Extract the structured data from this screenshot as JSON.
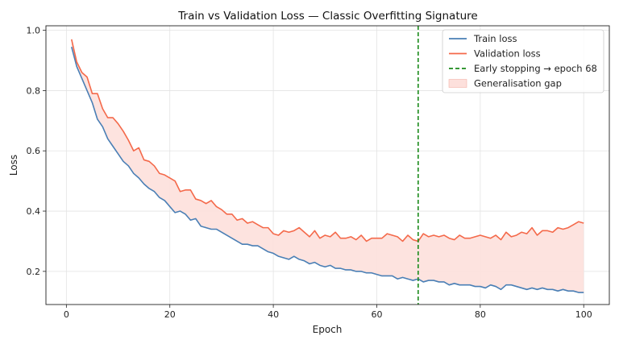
{
  "chart_data": {
    "type": "line",
    "title": "Train vs Validation Loss — Classic Overfitting Signature",
    "xlabel": "Epoch",
    "ylabel": "Loss",
    "xlim": [
      -3.95,
      104.95
    ],
    "ylim": [
      0.09,
      1.015
    ],
    "xticks": [
      0,
      20,
      40,
      60,
      80,
      100
    ],
    "yticks": [
      0.2,
      0.4,
      0.6,
      0.8,
      1.0
    ],
    "xtick_labels": [
      "0",
      "20",
      "40",
      "60",
      "80",
      "100"
    ],
    "ytick_labels": [
      "0.2",
      "0.4",
      "0.6",
      "0.8",
      "1.0"
    ],
    "grid": true,
    "legend_position": "top-right",
    "colors": {
      "train": "#4a7fb5",
      "validation": "#f4694a",
      "gap_fill": "#fde0dc",
      "early_stop": "#1a8a1a"
    },
    "legend": [
      {
        "label": "Train loss",
        "kind": "line",
        "color": "#4a7fb5"
      },
      {
        "label": "Validation loss",
        "kind": "line",
        "color": "#f4694a"
      },
      {
        "label": "Early stopping → epoch 68",
        "kind": "dashed",
        "color": "#1a8a1a"
      },
      {
        "label": "Generalisation gap",
        "kind": "patch",
        "color": "#fde0dc"
      }
    ],
    "early_stopping_epoch": 68,
    "x": [
      1,
      2,
      3,
      4,
      5,
      6,
      7,
      8,
      9,
      10,
      11,
      12,
      13,
      14,
      15,
      16,
      17,
      18,
      19,
      20,
      21,
      22,
      23,
      24,
      25,
      26,
      27,
      28,
      29,
      30,
      31,
      32,
      33,
      34,
      35,
      36,
      37,
      38,
      39,
      40,
      41,
      42,
      43,
      44,
      45,
      46,
      47,
      48,
      49,
      50,
      51,
      52,
      53,
      54,
      55,
      56,
      57,
      58,
      59,
      60,
      61,
      62,
      63,
      64,
      65,
      66,
      67,
      68,
      69,
      70,
      71,
      72,
      73,
      74,
      75,
      76,
      77,
      78,
      79,
      80,
      81,
      82,
      83,
      84,
      85,
      86,
      87,
      88,
      89,
      90,
      91,
      92,
      93,
      94,
      95,
      96,
      97,
      98,
      99,
      100
    ],
    "series": [
      {
        "name": "Train loss",
        "values": [
          0.945,
          0.88,
          0.84,
          0.8,
          0.76,
          0.705,
          0.68,
          0.64,
          0.615,
          0.59,
          0.565,
          0.55,
          0.525,
          0.51,
          0.49,
          0.475,
          0.465,
          0.445,
          0.435,
          0.415,
          0.395,
          0.4,
          0.39,
          0.37,
          0.375,
          0.35,
          0.345,
          0.34,
          0.34,
          0.33,
          0.32,
          0.31,
          0.3,
          0.29,
          0.29,
          0.285,
          0.285,
          0.275,
          0.265,
          0.26,
          0.25,
          0.245,
          0.24,
          0.25,
          0.24,
          0.235,
          0.225,
          0.23,
          0.22,
          0.215,
          0.22,
          0.21,
          0.21,
          0.205,
          0.205,
          0.2,
          0.2,
          0.195,
          0.195,
          0.19,
          0.185,
          0.185,
          0.185,
          0.175,
          0.18,
          0.175,
          0.17,
          0.175,
          0.165,
          0.17,
          0.17,
          0.165,
          0.165,
          0.155,
          0.16,
          0.155,
          0.155,
          0.155,
          0.15,
          0.15,
          0.145,
          0.155,
          0.15,
          0.14,
          0.155,
          0.155,
          0.15,
          0.145,
          0.14,
          0.145,
          0.14,
          0.145,
          0.14,
          0.14,
          0.135,
          0.14,
          0.135,
          0.135,
          0.13,
          0.13
        ]
      },
      {
        "name": "Validation loss",
        "values": [
          0.97,
          0.895,
          0.86,
          0.845,
          0.79,
          0.79,
          0.74,
          0.71,
          0.71,
          0.69,
          0.665,
          0.635,
          0.6,
          0.61,
          0.57,
          0.565,
          0.55,
          0.525,
          0.52,
          0.51,
          0.5,
          0.465,
          0.47,
          0.47,
          0.44,
          0.435,
          0.425,
          0.435,
          0.415,
          0.405,
          0.39,
          0.39,
          0.37,
          0.375,
          0.36,
          0.365,
          0.355,
          0.345,
          0.345,
          0.325,
          0.32,
          0.335,
          0.33,
          0.335,
          0.345,
          0.33,
          0.315,
          0.335,
          0.31,
          0.32,
          0.315,
          0.33,
          0.31,
          0.31,
          0.315,
          0.305,
          0.32,
          0.3,
          0.31,
          0.31,
          0.31,
          0.325,
          0.32,
          0.315,
          0.3,
          0.32,
          0.305,
          0.3,
          0.325,
          0.315,
          0.32,
          0.315,
          0.32,
          0.31,
          0.305,
          0.32,
          0.31,
          0.31,
          0.315,
          0.32,
          0.315,
          0.31,
          0.32,
          0.305,
          0.33,
          0.315,
          0.32,
          0.33,
          0.325,
          0.345,
          0.32,
          0.335,
          0.335,
          0.33,
          0.345,
          0.34,
          0.345,
          0.355,
          0.365,
          0.36
        ]
      }
    ]
  }
}
